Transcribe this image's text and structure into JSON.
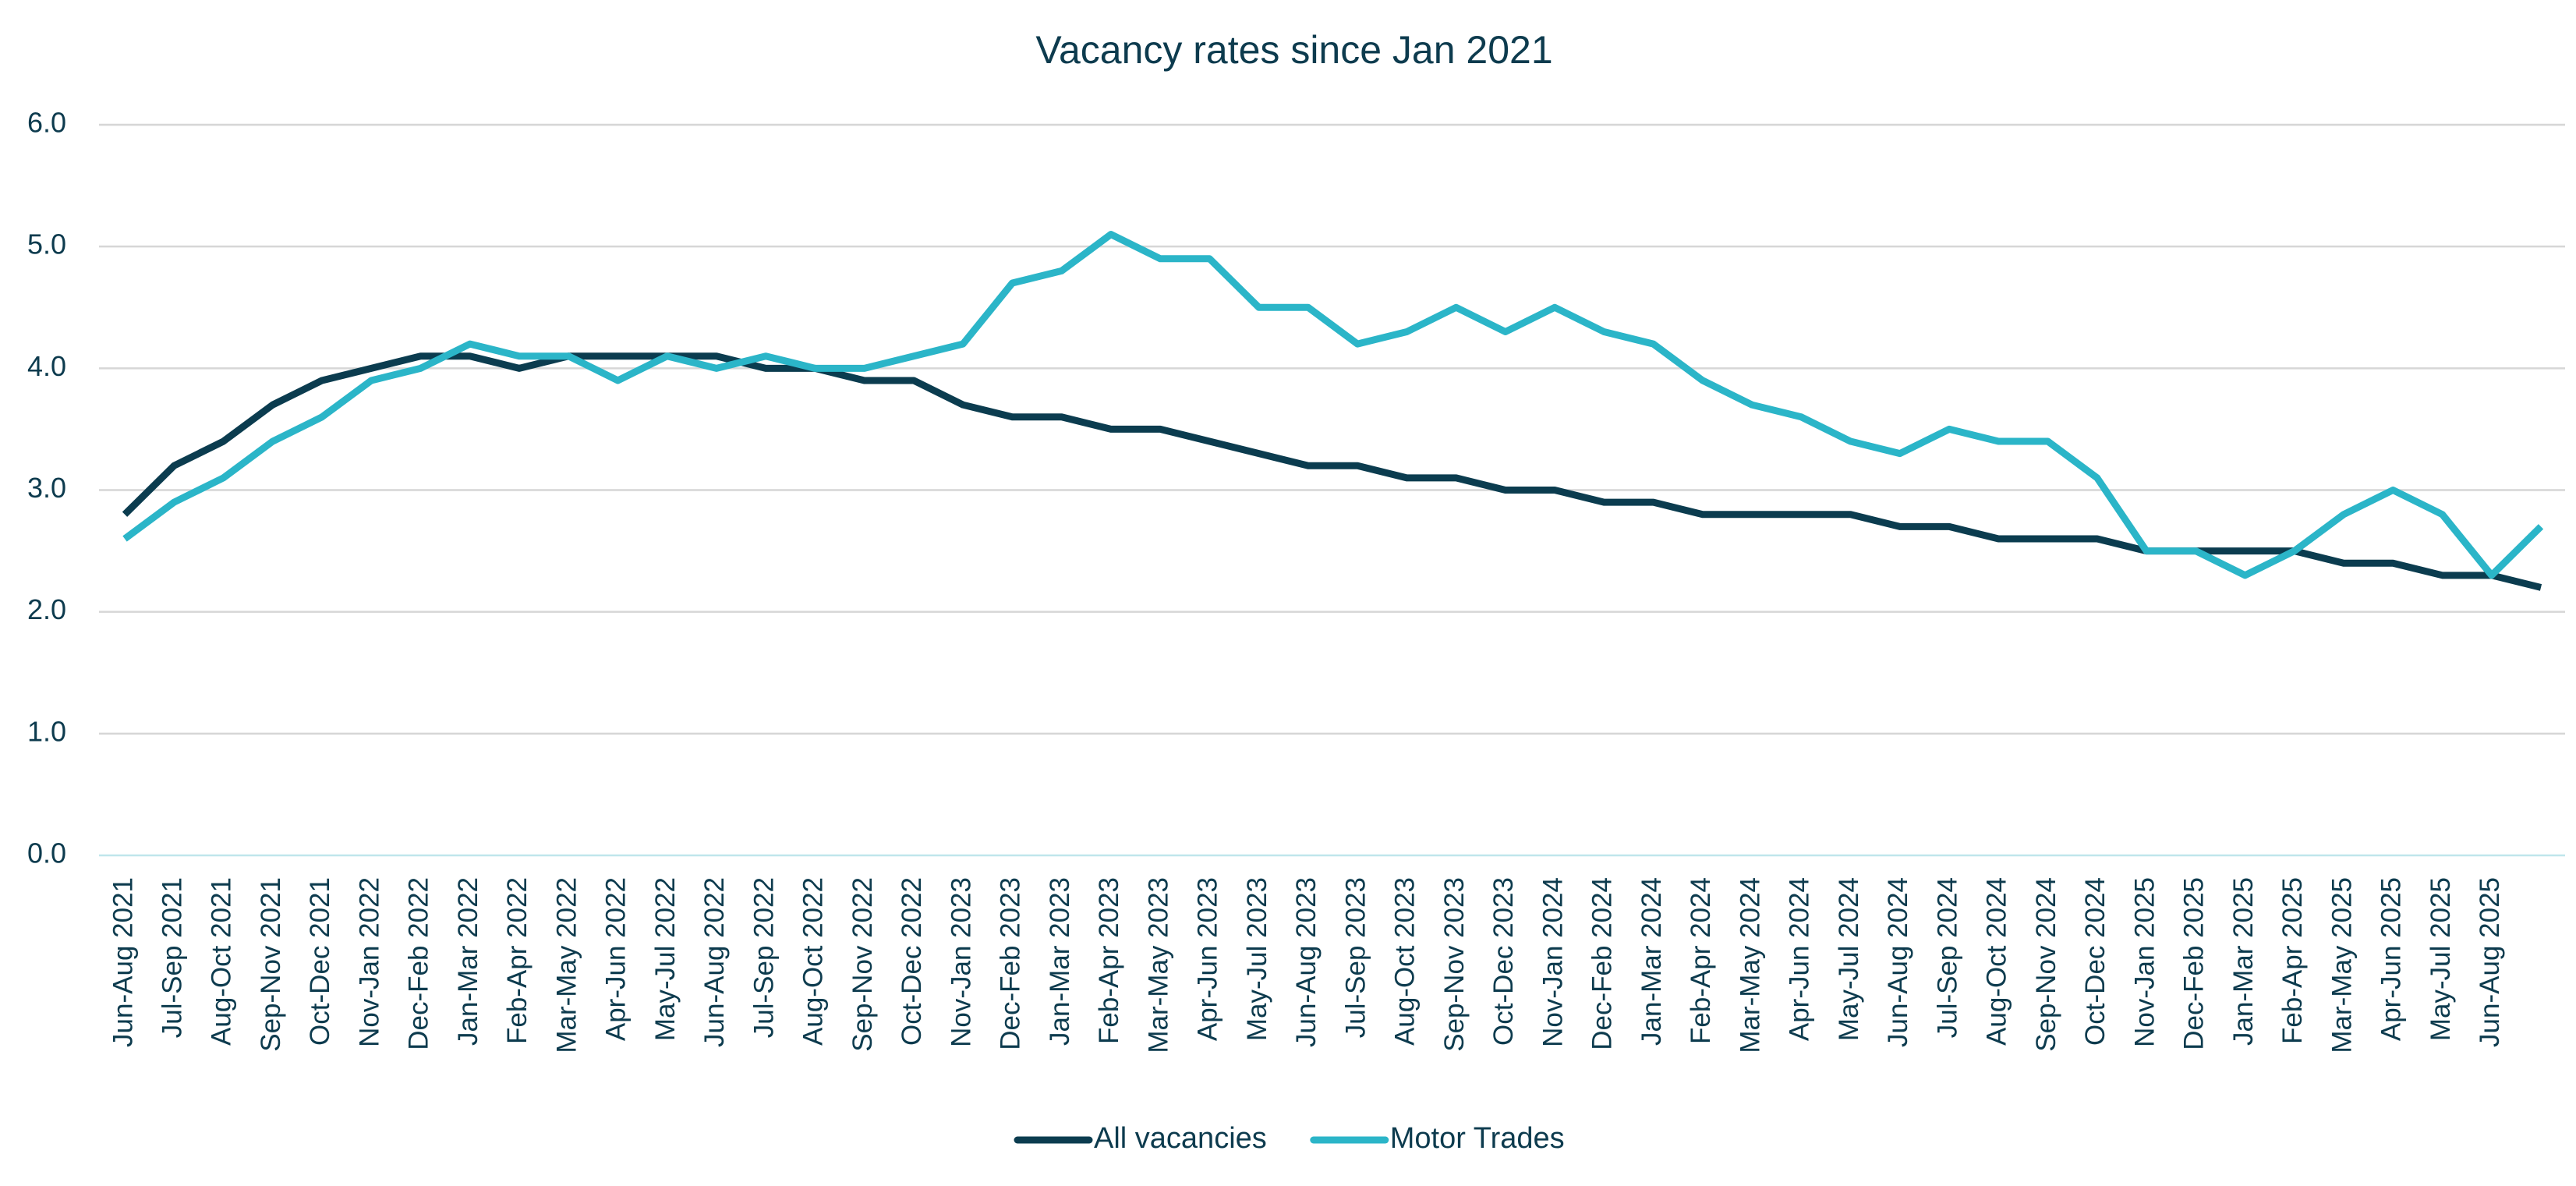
{
  "chart_data": {
    "type": "line",
    "title": "Vacancy rates since Jan 2021",
    "categories": [
      "Jun-Aug 2021",
      "Jul-Sep 2021",
      "Aug-Oct 2021",
      "Sep-Nov 2021",
      "Oct-Dec 2021",
      "Nov-Jan 2022",
      "Dec-Feb 2022",
      "Jan-Mar 2022",
      "Feb-Apr 2022",
      "Mar-May 2022",
      "Apr-Jun 2022",
      "May-Jul 2022",
      "Jun-Aug 2022",
      "Jul-Sep 2022",
      "Aug-Oct 2022",
      "Sep-Nov 2022",
      "Oct-Dec 2022",
      "Nov-Jan 2023",
      "Dec-Feb 2023",
      "Jan-Mar 2023",
      "Feb-Apr 2023",
      "Mar-May 2023",
      "Apr-Jun 2023",
      "May-Jul 2023",
      "Jun-Aug 2023",
      "Jul-Sep 2023",
      "Aug-Oct 2023",
      "Sep-Nov 2023",
      "Oct-Dec 2023",
      "Nov-Jan 2024",
      "Dec-Feb 2024",
      "Jan-Mar 2024",
      "Feb-Apr 2024",
      "Mar-May 2024",
      "Apr-Jun 2024",
      "May-Jul 2024",
      "Jun-Aug 2024",
      "Jul-Sep 2024",
      "Aug-Oct 2024",
      "Sep-Nov 2024",
      "Oct-Dec 2024",
      "Nov-Jan 2025",
      "Dec-Feb 2025",
      "Jan-Mar 2025",
      "Feb-Apr 2025",
      "Mar-May 2025",
      "Apr-Jun 2025",
      "May-Jul 2025",
      "Jun-Aug 2025",
      null
    ],
    "series": [
      {
        "name": "All vacancies",
        "color": "#0b3c4f",
        "values": [
          2.8,
          3.2,
          3.4,
          3.7,
          3.9,
          4.0,
          4.1,
          4.1,
          4.0,
          4.1,
          4.1,
          4.1,
          4.1,
          4.0,
          4.0,
          3.9,
          3.9,
          3.7,
          3.6,
          3.6,
          3.5,
          3.5,
          3.4,
          3.3,
          3.2,
          3.2,
          3.1,
          3.1,
          3.0,
          3.0,
          2.9,
          2.9,
          2.8,
          2.8,
          2.8,
          2.8,
          2.7,
          2.7,
          2.6,
          2.6,
          2.6,
          2.5,
          2.5,
          2.5,
          2.5,
          2.4,
          2.4,
          2.3,
          2.3,
          2.2
        ]
      },
      {
        "name": "Motor Trades",
        "color": "#2bb5c8",
        "values": [
          2.6,
          2.9,
          3.1,
          3.4,
          3.6,
          3.9,
          4.0,
          4.2,
          4.1,
          4.1,
          3.9,
          4.1,
          4.0,
          4.1,
          4.0,
          4.0,
          4.1,
          4.2,
          4.7,
          4.8,
          5.1,
          4.9,
          4.9,
          4.5,
          4.5,
          4.2,
          4.3,
          4.5,
          4.3,
          4.5,
          4.3,
          4.2,
          3.9,
          3.7,
          3.6,
          3.4,
          3.3,
          3.5,
          3.4,
          3.4,
          3.1,
          2.5,
          2.5,
          2.3,
          2.5,
          2.8,
          3.0,
          2.8,
          2.3,
          2.7
        ]
      }
    ],
    "ylim": [
      0,
      6
    ],
    "yticks": [
      {
        "value": 0,
        "label": "0.0"
      },
      {
        "value": 1,
        "label": "1.0"
      },
      {
        "value": 2,
        "label": "2.0"
      },
      {
        "value": 3,
        "label": "3.0"
      },
      {
        "value": 4,
        "label": "4.0"
      },
      {
        "value": 5,
        "label": "5.0"
      },
      {
        "value": 6,
        "label": "6.0"
      }
    ],
    "grid": true,
    "legend": "bottom"
  }
}
